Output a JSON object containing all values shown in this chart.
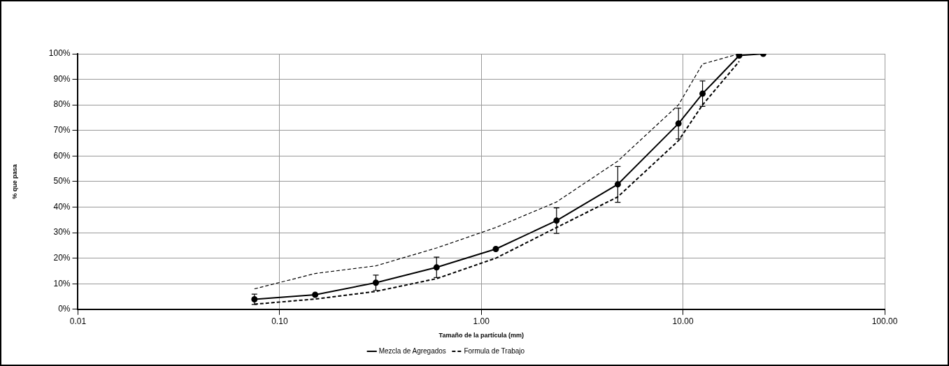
{
  "chart_data": {
    "type": "line",
    "xlabel": "Tamaño de la partícula (mm)",
    "ylabel": "% que pasa",
    "log": "x",
    "xlim": [
      0.01,
      100
    ],
    "xticks": [
      {
        "value": 0.01,
        "label": "0.01"
      },
      {
        "value": 0.1,
        "label": "0.10"
      },
      {
        "value": 1,
        "label": "1.00"
      },
      {
        "value": 10,
        "label": "10.00"
      },
      {
        "value": 100,
        "label": "100.00"
      }
    ],
    "ylim": [
      0,
      100
    ],
    "yticks": [
      {
        "value": 0,
        "label": "0%"
      },
      {
        "value": 10,
        "label": "10%"
      },
      {
        "value": 20,
        "label": "20%"
      },
      {
        "value": 30,
        "label": "30%"
      },
      {
        "value": 40,
        "label": "40%"
      },
      {
        "value": 50,
        "label": "50%"
      },
      {
        "value": 60,
        "label": "60%"
      },
      {
        "value": 70,
        "label": "70%"
      },
      {
        "value": 80,
        "label": "80%"
      },
      {
        "value": 90,
        "label": "90%"
      },
      {
        "value": 100,
        "label": "100%"
      }
    ],
    "grid": true,
    "legend": "bottom",
    "series": [
      {
        "name": "Mezcla de Agregados",
        "color": "#000000",
        "marker": "circle",
        "line_style": "solid",
        "x": [
          0.075,
          0.15,
          0.3,
          0.6,
          1.18,
          2.36,
          4.75,
          9.5,
          12.5,
          19,
          25
        ],
        "values": [
          3.9,
          5.7,
          10.4,
          16.4,
          23.6,
          34.7,
          48.9,
          72.7,
          84.4,
          99.3,
          100
        ],
        "errors": [
          2,
          null,
          3,
          4,
          null,
          5,
          7,
          6,
          5,
          null,
          null
        ]
      },
      {
        "color": "#000000",
        "marker": "none",
        "line_style": "dashed",
        "x": [
          0.075,
          0.15,
          0.3,
          0.6,
          1.18,
          2.36,
          4.75,
          9.5,
          12.5,
          19
        ],
        "values": [
          8,
          14,
          17,
          24,
          32,
          42,
          58,
          80,
          96,
          100
        ]
      },
      {
        "name": "Formula de Trabajo",
        "color": "#000000",
        "marker": "none",
        "line_style": "dashed",
        "x": [
          0.075,
          0.15,
          0.3,
          0.6,
          1.18,
          2.36,
          4.75,
          9.5,
          12.5,
          19
        ],
        "values": [
          2,
          4,
          7,
          12,
          20,
          32,
          44,
          66,
          80,
          97
        ]
      }
    ]
  }
}
